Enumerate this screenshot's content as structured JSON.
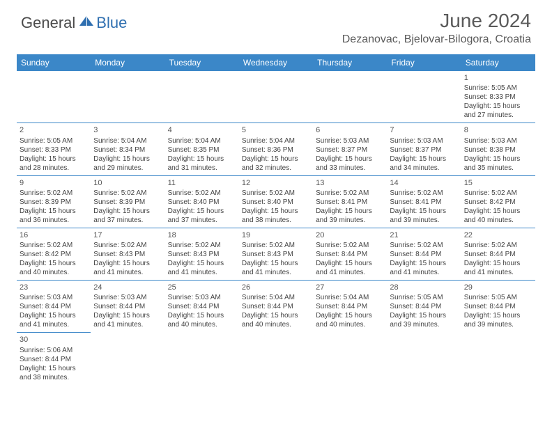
{
  "logo": {
    "general": "General",
    "blue": "Blue"
  },
  "title": "June 2024",
  "location": "Dezanovac, Bjelovar-Bilogora, Croatia",
  "colors": {
    "header_bg": "#3b87c8",
    "header_fg": "#ffffff",
    "rule": "#3b87c8",
    "text": "#444444",
    "logo_blue": "#2f6fb0"
  },
  "days_of_week": [
    "Sunday",
    "Monday",
    "Tuesday",
    "Wednesday",
    "Thursday",
    "Friday",
    "Saturday"
  ],
  "weeks": [
    [
      null,
      null,
      null,
      null,
      null,
      null,
      {
        "n": "1",
        "sr": "Sunrise: 5:05 AM",
        "ss": "Sunset: 8:33 PM",
        "d1": "Daylight: 15 hours",
        "d2": "and 27 minutes."
      }
    ],
    [
      {
        "n": "2",
        "sr": "Sunrise: 5:05 AM",
        "ss": "Sunset: 8:33 PM",
        "d1": "Daylight: 15 hours",
        "d2": "and 28 minutes."
      },
      {
        "n": "3",
        "sr": "Sunrise: 5:04 AM",
        "ss": "Sunset: 8:34 PM",
        "d1": "Daylight: 15 hours",
        "d2": "and 29 minutes."
      },
      {
        "n": "4",
        "sr": "Sunrise: 5:04 AM",
        "ss": "Sunset: 8:35 PM",
        "d1": "Daylight: 15 hours",
        "d2": "and 31 minutes."
      },
      {
        "n": "5",
        "sr": "Sunrise: 5:04 AM",
        "ss": "Sunset: 8:36 PM",
        "d1": "Daylight: 15 hours",
        "d2": "and 32 minutes."
      },
      {
        "n": "6",
        "sr": "Sunrise: 5:03 AM",
        "ss": "Sunset: 8:37 PM",
        "d1": "Daylight: 15 hours",
        "d2": "and 33 minutes."
      },
      {
        "n": "7",
        "sr": "Sunrise: 5:03 AM",
        "ss": "Sunset: 8:37 PM",
        "d1": "Daylight: 15 hours",
        "d2": "and 34 minutes."
      },
      {
        "n": "8",
        "sr": "Sunrise: 5:03 AM",
        "ss": "Sunset: 8:38 PM",
        "d1": "Daylight: 15 hours",
        "d2": "and 35 minutes."
      }
    ],
    [
      {
        "n": "9",
        "sr": "Sunrise: 5:02 AM",
        "ss": "Sunset: 8:39 PM",
        "d1": "Daylight: 15 hours",
        "d2": "and 36 minutes."
      },
      {
        "n": "10",
        "sr": "Sunrise: 5:02 AM",
        "ss": "Sunset: 8:39 PM",
        "d1": "Daylight: 15 hours",
        "d2": "and 37 minutes."
      },
      {
        "n": "11",
        "sr": "Sunrise: 5:02 AM",
        "ss": "Sunset: 8:40 PM",
        "d1": "Daylight: 15 hours",
        "d2": "and 37 minutes."
      },
      {
        "n": "12",
        "sr": "Sunrise: 5:02 AM",
        "ss": "Sunset: 8:40 PM",
        "d1": "Daylight: 15 hours",
        "d2": "and 38 minutes."
      },
      {
        "n": "13",
        "sr": "Sunrise: 5:02 AM",
        "ss": "Sunset: 8:41 PM",
        "d1": "Daylight: 15 hours",
        "d2": "and 39 minutes."
      },
      {
        "n": "14",
        "sr": "Sunrise: 5:02 AM",
        "ss": "Sunset: 8:41 PM",
        "d1": "Daylight: 15 hours",
        "d2": "and 39 minutes."
      },
      {
        "n": "15",
        "sr": "Sunrise: 5:02 AM",
        "ss": "Sunset: 8:42 PM",
        "d1": "Daylight: 15 hours",
        "d2": "and 40 minutes."
      }
    ],
    [
      {
        "n": "16",
        "sr": "Sunrise: 5:02 AM",
        "ss": "Sunset: 8:42 PM",
        "d1": "Daylight: 15 hours",
        "d2": "and 40 minutes."
      },
      {
        "n": "17",
        "sr": "Sunrise: 5:02 AM",
        "ss": "Sunset: 8:43 PM",
        "d1": "Daylight: 15 hours",
        "d2": "and 41 minutes."
      },
      {
        "n": "18",
        "sr": "Sunrise: 5:02 AM",
        "ss": "Sunset: 8:43 PM",
        "d1": "Daylight: 15 hours",
        "d2": "and 41 minutes."
      },
      {
        "n": "19",
        "sr": "Sunrise: 5:02 AM",
        "ss": "Sunset: 8:43 PM",
        "d1": "Daylight: 15 hours",
        "d2": "and 41 minutes."
      },
      {
        "n": "20",
        "sr": "Sunrise: 5:02 AM",
        "ss": "Sunset: 8:44 PM",
        "d1": "Daylight: 15 hours",
        "d2": "and 41 minutes."
      },
      {
        "n": "21",
        "sr": "Sunrise: 5:02 AM",
        "ss": "Sunset: 8:44 PM",
        "d1": "Daylight: 15 hours",
        "d2": "and 41 minutes."
      },
      {
        "n": "22",
        "sr": "Sunrise: 5:02 AM",
        "ss": "Sunset: 8:44 PM",
        "d1": "Daylight: 15 hours",
        "d2": "and 41 minutes."
      }
    ],
    [
      {
        "n": "23",
        "sr": "Sunrise: 5:03 AM",
        "ss": "Sunset: 8:44 PM",
        "d1": "Daylight: 15 hours",
        "d2": "and 41 minutes."
      },
      {
        "n": "24",
        "sr": "Sunrise: 5:03 AM",
        "ss": "Sunset: 8:44 PM",
        "d1": "Daylight: 15 hours",
        "d2": "and 41 minutes."
      },
      {
        "n": "25",
        "sr": "Sunrise: 5:03 AM",
        "ss": "Sunset: 8:44 PM",
        "d1": "Daylight: 15 hours",
        "d2": "and 40 minutes."
      },
      {
        "n": "26",
        "sr": "Sunrise: 5:04 AM",
        "ss": "Sunset: 8:44 PM",
        "d1": "Daylight: 15 hours",
        "d2": "and 40 minutes."
      },
      {
        "n": "27",
        "sr": "Sunrise: 5:04 AM",
        "ss": "Sunset: 8:44 PM",
        "d1": "Daylight: 15 hours",
        "d2": "and 40 minutes."
      },
      {
        "n": "28",
        "sr": "Sunrise: 5:05 AM",
        "ss": "Sunset: 8:44 PM",
        "d1": "Daylight: 15 hours",
        "d2": "and 39 minutes."
      },
      {
        "n": "29",
        "sr": "Sunrise: 5:05 AM",
        "ss": "Sunset: 8:44 PM",
        "d1": "Daylight: 15 hours",
        "d2": "and 39 minutes."
      }
    ],
    [
      {
        "n": "30",
        "sr": "Sunrise: 5:06 AM",
        "ss": "Sunset: 8:44 PM",
        "d1": "Daylight: 15 hours",
        "d2": "and 38 minutes."
      },
      null,
      null,
      null,
      null,
      null,
      null
    ]
  ]
}
